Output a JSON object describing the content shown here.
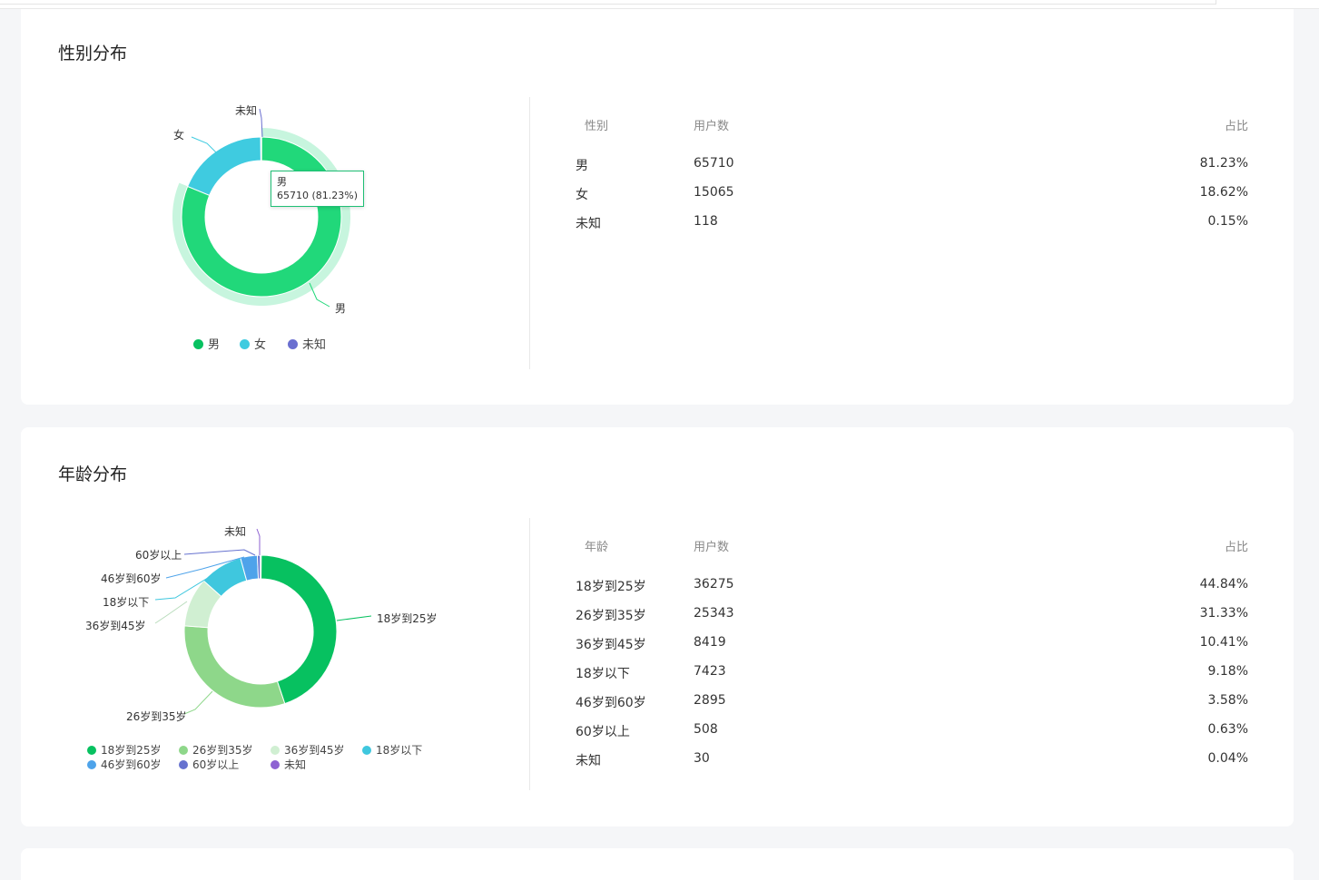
{
  "colors": {
    "male": "#21d87a",
    "female": "#3fcbe0",
    "unknown_gender": "#6a6fd0",
    "age_18_25": "#07c160",
    "age_26_35": "#8ed78a",
    "age_36_45": "#d0efd2",
    "age_under18": "#3fc7de",
    "age_46_60": "#4ea3ea",
    "age_60plus": "#6672cf",
    "age_unknown": "#8e62d2"
  },
  "gender": {
    "title": "性别分布",
    "columns": [
      "性别",
      "用户数",
      "占比"
    ],
    "rows": [
      {
        "label": "男",
        "count": "65710",
        "pct": "81.23%"
      },
      {
        "label": "女",
        "count": "15065",
        "pct": "18.62%"
      },
      {
        "label": "未知",
        "count": "118",
        "pct": "0.15%"
      }
    ],
    "tooltip": {
      "name": "男",
      "value": "65710 (81.23%)"
    },
    "legend": [
      "男",
      "女",
      "未知"
    ]
  },
  "age": {
    "title": "年龄分布",
    "columns": [
      "年龄",
      "用户数",
      "占比"
    ],
    "rows": [
      {
        "label": "18岁到25岁",
        "count": "36275",
        "pct": "44.84%"
      },
      {
        "label": "26岁到35岁",
        "count": "25343",
        "pct": "31.33%"
      },
      {
        "label": "36岁到45岁",
        "count": "8419",
        "pct": "10.41%"
      },
      {
        "label": "18岁以下",
        "count": "7423",
        "pct": "9.18%"
      },
      {
        "label": "46岁到60岁",
        "count": "2895",
        "pct": "3.58%"
      },
      {
        "label": "60岁以上",
        "count": "508",
        "pct": "0.63%"
      },
      {
        "label": "未知",
        "count": "30",
        "pct": "0.04%"
      }
    ],
    "legend": [
      "18岁到25岁",
      "26岁到35岁",
      "36岁到45岁",
      "18岁以下",
      "46岁到60岁",
      "60岁以上",
      "未知"
    ]
  },
  "chart_data": [
    {
      "type": "pie",
      "categories": [
        "男",
        "女",
        "未知"
      ],
      "values": [
        65710,
        15065,
        118
      ],
      "percentages": [
        81.23,
        18.62,
        0.15
      ],
      "legend": "bottom",
      "highlighted": "男"
    },
    {
      "type": "pie",
      "categories": [
        "18岁到25岁",
        "26岁到35岁",
        "36岁到45岁",
        "18岁以下",
        "46岁到60岁",
        "60岁以上",
        "未知"
      ],
      "values": [
        36275,
        25343,
        8419,
        7423,
        2895,
        508,
        30
      ],
      "percentages": [
        44.84,
        31.33,
        10.41,
        9.18,
        3.58,
        0.63,
        0.04
      ],
      "legend": "bottom"
    }
  ]
}
